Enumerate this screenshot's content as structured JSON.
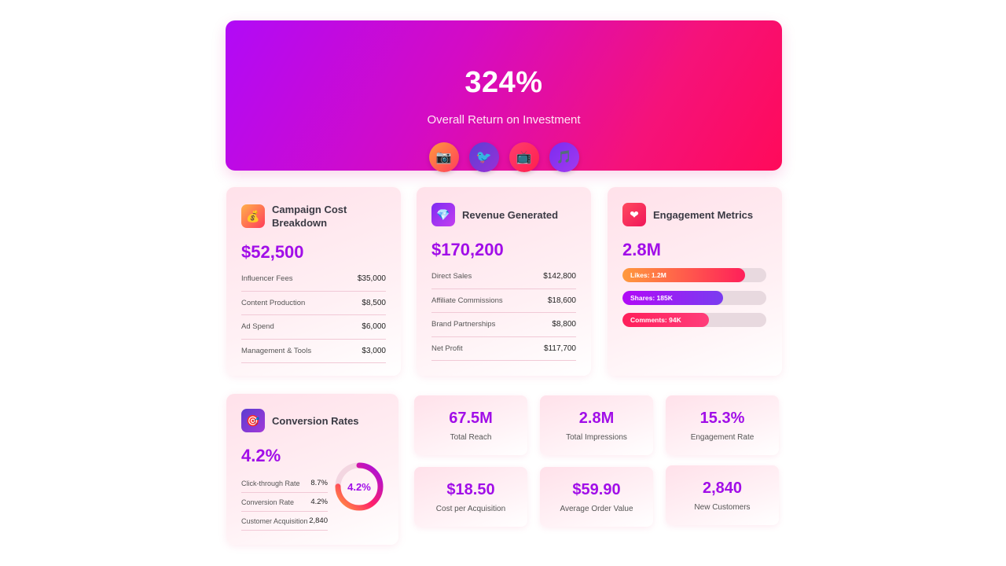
{
  "hero": {
    "value": "324%",
    "label": "Overall Return on Investment",
    "icons": [
      {
        "name": "camera-icon",
        "glyph": "📷"
      },
      {
        "name": "bird-icon",
        "glyph": "🐦"
      },
      {
        "name": "tv-icon",
        "glyph": "📺"
      },
      {
        "name": "music-icon",
        "glyph": "🎵"
      }
    ]
  },
  "cost": {
    "icon": "💰",
    "title": "Campaign Cost Breakdown",
    "value": "$52,500",
    "rows": [
      {
        "label": "Influencer Fees",
        "value": "$35,000"
      },
      {
        "label": "Content Production",
        "value": "$8,500"
      },
      {
        "label": "Ad Spend",
        "value": "$6,000"
      },
      {
        "label": "Management & Tools",
        "value": "$3,000"
      }
    ]
  },
  "revenue": {
    "icon": "💎",
    "title": "Revenue Generated",
    "value": "$170,200",
    "rows": [
      {
        "label": "Direct Sales",
        "value": "$142,800"
      },
      {
        "label": "Affiliate Commissions",
        "value": "$18,600"
      },
      {
        "label": "Brand Partnerships",
        "value": "$8,800"
      },
      {
        "label": "Net Profit",
        "value": "$117,700"
      }
    ]
  },
  "engagement": {
    "icon": "❤",
    "title": "Engagement Metrics",
    "value": "2.8M",
    "bars": [
      {
        "label": "Likes: 1.2M",
        "fraction": 0.85
      },
      {
        "label": "Shares: 185K",
        "fraction": 0.7
      },
      {
        "label": "Comments: 94K",
        "fraction": 0.6
      }
    ]
  },
  "conversion": {
    "icon": "🎯",
    "title": "Conversion Rates",
    "value": "4.2%",
    "donut_label": "4.2%",
    "donut_fraction": 0.75,
    "rows": [
      {
        "label": "Click-through Rate",
        "value": "8.7%"
      },
      {
        "label": "Conversion Rate",
        "value": "4.2%"
      },
      {
        "label": "Customer Acquisition",
        "value": "2,840"
      }
    ]
  },
  "stats": [
    {
      "value": "67.5M",
      "label": "Total Reach"
    },
    {
      "value": "2.8M",
      "label": "Total Impressions"
    },
    {
      "value": "15.3%",
      "label": "Engagement Rate"
    },
    {
      "value": "$18.50",
      "label": "Cost per Acquisition"
    },
    {
      "value": "$59.90",
      "label": "Average Order Value"
    },
    {
      "value": "2,840",
      "label": "New Customers"
    }
  ],
  "colors": {
    "accent": "#a10ee8",
    "hero_start": "#b10af7",
    "hero_end": "#ff0a5a"
  }
}
